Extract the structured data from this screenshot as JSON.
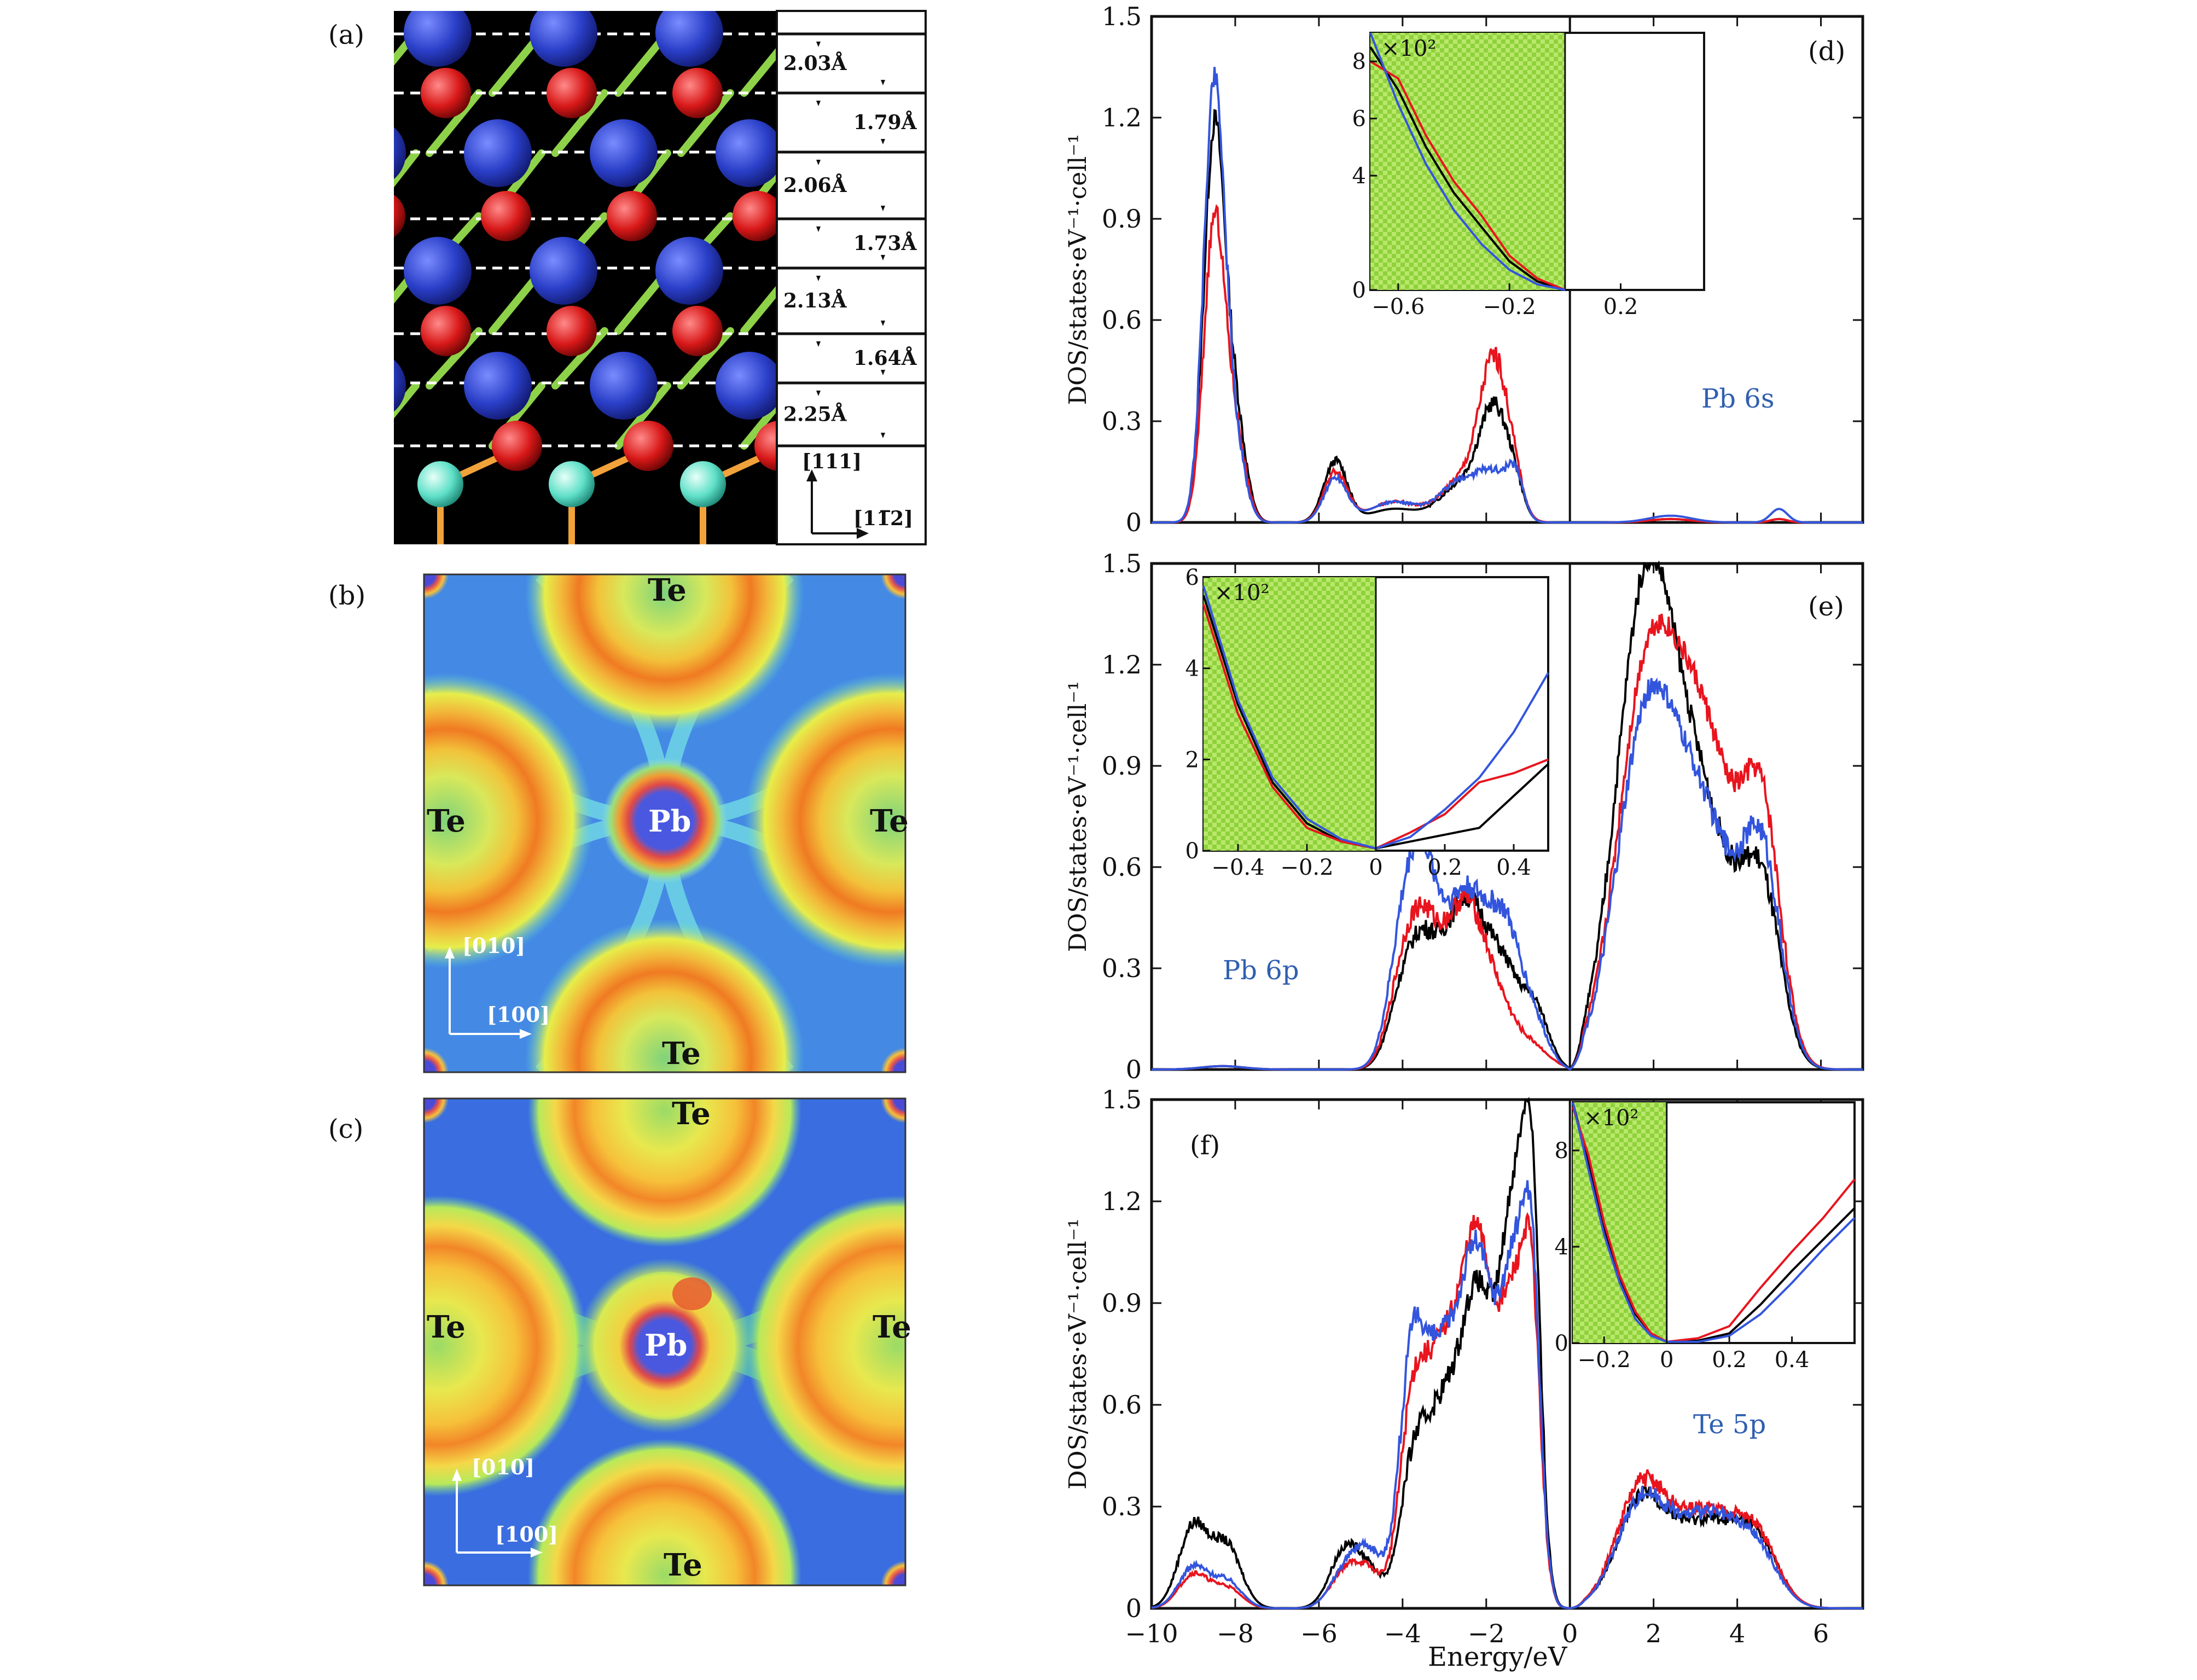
{
  "figure": {
    "panel_letters": [
      "(a)",
      "(b)",
      "(c)",
      "(d)",
      "(e)",
      "(f)"
    ],
    "panel_a": {
      "spacings": [
        "2.03Å",
        "1.79Å",
        "2.06Å",
        "1.73Å",
        "2.13Å",
        "1.64Å",
        "2.25Å"
      ],
      "dir_vertical": "[111]",
      "dir_horizontal": "[11̅2]",
      "colors": {
        "Te_atom": "#2a3fc8",
        "Pb_atom": "#d81818",
        "substrate_atom": "#5fe0c8",
        "bond": "#8ed24a",
        "background": "#000000"
      }
    },
    "panel_b": {
      "labels": {
        "te_top": "Te",
        "te_left": "Te",
        "te_right": "Te",
        "te_bottom": "Te",
        "pb_center": "Pb"
      },
      "dir_vertical": "[010]",
      "dir_horizontal": "[100]"
    },
    "panel_c": {
      "labels": {
        "te_top": "Te",
        "te_left": "Te",
        "te_right": "Te",
        "te_bottom": "Te",
        "pb_center": "Pb"
      },
      "dir_vertical": "[010]",
      "dir_horizontal": "[100]"
    },
    "xlabel": "Energy/eV",
    "ylabel": "DOS/states·eV⁻¹·cell⁻¹",
    "inset_multiplier": "×10²"
  },
  "chart_data": [
    {
      "type": "line",
      "panel": "(d)",
      "annotation": "Pb 6s",
      "xlim": [
        -10,
        7
      ],
      "ylim": [
        0,
        1.5
      ],
      "yticks": [
        "0",
        "0.3",
        "0.6",
        "0.9",
        "1.2",
        "1.5"
      ],
      "xticks": [
        -10,
        -8,
        -6,
        -4,
        -2,
        0,
        2,
        4,
        6
      ],
      "series_colors": [
        "#000000",
        "#e8141e",
        "#3355dd"
      ],
      "peaks": [
        {
          "x": -8.5,
          "w": 0.25,
          "h": [
            1.15,
            0.88,
            1.3
          ]
        },
        {
          "x": -8.0,
          "w": 0.25,
          "h": [
            0.3,
            0.25,
            0.2
          ]
        },
        {
          "x": -5.6,
          "w": 0.28,
          "h": [
            0.18,
            0.15,
            0.13
          ]
        },
        {
          "x": -4.2,
          "w": 0.6,
          "h": [
            0.04,
            0.06,
            0.06
          ]
        },
        {
          "x": -2.6,
          "w": 0.5,
          "h": [
            0.11,
            0.12,
            0.12
          ]
        },
        {
          "x": -1.8,
          "w": 0.35,
          "h": [
            0.32,
            0.46,
            0.12
          ]
        },
        {
          "x": -1.3,
          "w": 0.2,
          "h": [
            0.06,
            0.05,
            0.12
          ]
        },
        {
          "x": 2.4,
          "w": 0.5,
          "h": [
            0.01,
            0.01,
            0.02
          ]
        },
        {
          "x": 5.0,
          "w": 0.2,
          "h": [
            0.01,
            0.01,
            0.04
          ]
        }
      ],
      "inset": {
        "xlim": [
          -0.7,
          0.5
        ],
        "ylim": [
          0,
          9
        ],
        "xticks": [
          "-0.6",
          "-0.2",
          "0.2"
        ],
        "yticks": [
          "0",
          "4",
          "6",
          "8"
        ],
        "shade_to": 0,
        "curves": [
          {
            "color": "#000000",
            "x": [
              -0.7,
              -0.6,
              -0.5,
              -0.4,
              -0.3,
              -0.2,
              -0.1,
              0
            ],
            "y": [
              8.5,
              7.0,
              5.0,
              3.4,
              2.2,
              1.0,
              0.3,
              0
            ]
          },
          {
            "color": "#e8141e",
            "x": [
              -0.7,
              -0.6,
              -0.5,
              -0.4,
              -0.3,
              -0.2,
              -0.1,
              0
            ],
            "y": [
              8.0,
              7.4,
              5.4,
              3.8,
              2.6,
              1.2,
              0.4,
              0
            ]
          },
          {
            "color": "#3355dd",
            "x": [
              -0.7,
              -0.6,
              -0.5,
              -0.4,
              -0.3,
              -0.2,
              -0.1,
              0
            ],
            "y": [
              9.0,
              6.5,
              4.4,
              2.8,
              1.6,
              0.7,
              0.2,
              0
            ]
          }
        ]
      }
    },
    {
      "type": "line",
      "panel": "(e)",
      "annotation": "Pb 6p",
      "xlim": [
        -10,
        7
      ],
      "ylim": [
        0,
        1.5
      ],
      "yticks": [
        "0",
        "0.3",
        "0.6",
        "0.9",
        "1.2",
        "1.5"
      ],
      "xticks": [
        -10,
        -8,
        -6,
        -4,
        -2,
        0,
        2,
        4,
        6
      ],
      "series_colors": [
        "#000000",
        "#e8141e",
        "#3355dd"
      ],
      "peaks": [
        {
          "x": -8.3,
          "w": 0.5,
          "h": [
            0.01,
            0.01,
            0.01
          ]
        },
        {
          "x": -4.0,
          "w": 0.35,
          "h": [
            0.2,
            0.25,
            0.35
          ]
        },
        {
          "x": -3.5,
          "w": 0.35,
          "h": [
            0.25,
            0.3,
            0.45
          ]
        },
        {
          "x": -2.5,
          "w": 0.55,
          "h": [
            0.5,
            0.5,
            0.52
          ]
        },
        {
          "x": -1.5,
          "w": 0.4,
          "h": [
            0.22,
            0.1,
            0.35
          ]
        },
        {
          "x": -0.8,
          "w": 0.3,
          "h": [
            0.15,
            0.05,
            0.1
          ]
        },
        {
          "x": 1.8,
          "w": 0.7,
          "h": [
            1.35,
            1.05,
            0.95
          ]
        },
        {
          "x": 3.2,
          "w": 0.8,
          "h": [
            0.7,
            0.95,
            0.7
          ]
        },
        {
          "x": 4.6,
          "w": 0.45,
          "h": [
            0.45,
            0.65,
            0.55
          ]
        }
      ],
      "inset": {
        "xlim": [
          -0.5,
          0.5
        ],
        "ylim": [
          0,
          6
        ],
        "xticks": [
          "-0.4",
          "-0.2",
          "0",
          "0.2",
          "0.4"
        ],
        "yticks": [
          "0",
          "2",
          "4",
          "6"
        ],
        "shade_to": 0,
        "curves": [
          {
            "color": "#000000",
            "x": [
              -0.5,
              -0.4,
              -0.3,
              -0.2,
              -0.1,
              0,
              0.1,
              0.2,
              0.3,
              0.4,
              0.5
            ],
            "y": [
              5.6,
              3.2,
              1.5,
              0.6,
              0.2,
              0.05,
              0.2,
              0.35,
              0.5,
              1.2,
              1.9
            ]
          },
          {
            "color": "#e8141e",
            "x": [
              -0.5,
              -0.4,
              -0.3,
              -0.2,
              -0.1,
              0,
              0.1,
              0.2,
              0.3,
              0.4,
              0.5
            ],
            "y": [
              5.4,
              3.0,
              1.4,
              0.5,
              0.2,
              0.05,
              0.4,
              0.8,
              1.5,
              1.7,
              2.0
            ]
          },
          {
            "color": "#3355dd",
            "x": [
              -0.5,
              -0.4,
              -0.3,
              -0.2,
              -0.1,
              0,
              0.1,
              0.2,
              0.3,
              0.4,
              0.5
            ],
            "y": [
              5.8,
              3.3,
              1.6,
              0.7,
              0.25,
              0.05,
              0.3,
              0.9,
              1.6,
              2.6,
              3.9
            ]
          }
        ]
      }
    },
    {
      "type": "line",
      "panel": "(f)",
      "annotation": "Te 5p",
      "xlim": [
        -10,
        7
      ],
      "ylim": [
        0,
        1.5
      ],
      "yticks": [
        "0",
        "0.3",
        "0.6",
        "0.9",
        "1.2",
        "1.5"
      ],
      "xticks": [
        "−10",
        "−8",
        "−6",
        "−4",
        "−2",
        "0",
        "2",
        "4",
        "6"
      ],
      "xtick_values": [
        -10,
        -8,
        -6,
        -4,
        -2,
        0,
        2,
        4,
        6
      ],
      "series_colors": [
        "#000000",
        "#e8141e",
        "#3355dd"
      ],
      "peaks": [
        {
          "x": -9.0,
          "w": 0.35,
          "h": [
            0.24,
            0.1,
            0.12
          ]
        },
        {
          "x": -8.2,
          "w": 0.35,
          "h": [
            0.18,
            0.06,
            0.08
          ]
        },
        {
          "x": -5.4,
          "w": 0.35,
          "h": [
            0.16,
            0.1,
            0.1
          ]
        },
        {
          "x": -4.8,
          "w": 0.35,
          "h": [
            0.1,
            0.1,
            0.16
          ]
        },
        {
          "x": -3.8,
          "w": 0.3,
          "h": [
            0.3,
            0.45,
            0.6
          ]
        },
        {
          "x": -3.1,
          "w": 0.45,
          "h": [
            0.55,
            0.7,
            0.7
          ]
        },
        {
          "x": -2.2,
          "w": 0.4,
          "h": [
            0.85,
            1.0,
            0.95
          ]
        },
        {
          "x": -1.3,
          "w": 0.35,
          "h": [
            1.15,
            0.85,
            0.95
          ]
        },
        {
          "x": -0.9,
          "w": 0.2,
          "h": [
            0.8,
            0.6,
            0.65
          ]
        },
        {
          "x": 1.7,
          "w": 0.6,
          "h": [
            0.3,
            0.34,
            0.3
          ]
        },
        {
          "x": 3.3,
          "w": 0.8,
          "h": [
            0.25,
            0.28,
            0.27
          ]
        },
        {
          "x": 4.5,
          "w": 0.5,
          "h": [
            0.15,
            0.15,
            0.12
          ]
        }
      ],
      "inset": {
        "xlim": [
          -0.3,
          0.6
        ],
        "ylim": [
          0,
          10
        ],
        "xticks": [
          "-0.2",
          "0",
          "0.2",
          "0.4"
        ],
        "yticks": [
          "0",
          "4",
          "8"
        ],
        "shade_to": 0,
        "curves": [
          {
            "color": "#000000",
            "x": [
              -0.3,
              -0.25,
              -0.2,
              -0.15,
              -0.1,
              -0.05,
              0,
              0.1,
              0.2,
              0.3,
              0.4,
              0.5,
              0.6
            ],
            "y": [
              10.0,
              7.5,
              4.8,
              2.7,
              1.2,
              0.4,
              0.05,
              0.1,
              0.4,
              1.6,
              3.0,
              4.3,
              5.6
            ]
          },
          {
            "color": "#e8141e",
            "x": [
              -0.3,
              -0.25,
              -0.2,
              -0.15,
              -0.1,
              -0.05,
              0,
              0.1,
              0.2,
              0.3,
              0.4,
              0.5,
              0.6
            ],
            "y": [
              9.8,
              7.8,
              5.0,
              2.8,
              1.3,
              0.4,
              0.05,
              0.2,
              0.7,
              2.3,
              3.8,
              5.2,
              6.8
            ]
          },
          {
            "color": "#3355dd",
            "x": [
              -0.3,
              -0.25,
              -0.2,
              -0.15,
              -0.1,
              -0.05,
              0,
              0.1,
              0.2,
              0.3,
              0.4,
              0.5,
              0.6
            ],
            "y": [
              10.0,
              7.2,
              4.5,
              2.5,
              1.0,
              0.3,
              0.05,
              0.05,
              0.3,
              1.2,
              2.5,
              3.9,
              5.2
            ]
          }
        ]
      }
    }
  ]
}
